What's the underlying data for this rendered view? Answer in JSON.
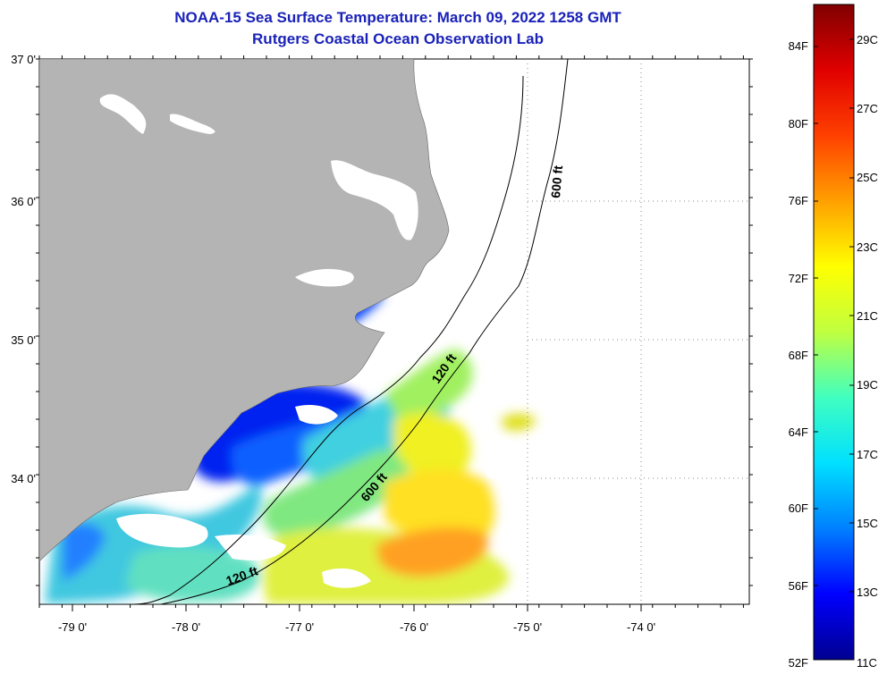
{
  "title": {
    "line1": "NOAA-15 Sea Surface Temperature:  March 09, 2022 1258 GMT",
    "line2": "Rutgers Coastal Ocean Observation Lab"
  },
  "map": {
    "lat_labels": [
      "37 0'",
      "36 0'",
      "35 0'",
      "34 0'"
    ],
    "lon_labels": [
      "-79 0'",
      "-78 0'",
      "-77 0'",
      "-76 0'",
      "-75 0'",
      "-74 0'"
    ],
    "contours": [
      {
        "label": "600 ft"
      },
      {
        "label": "120 ft"
      },
      {
        "label": "600 ft"
      },
      {
        "label": "120 ft"
      }
    ],
    "colors": {
      "land": "#b4b4b4",
      "contour": "#000000",
      "grid": "#888888"
    }
  },
  "colorbar": {
    "fahrenheit_labels": [
      "84F",
      "80F",
      "76F",
      "72F",
      "68F",
      "64F",
      "60F",
      "56F",
      "52F"
    ],
    "celsius_labels": [
      "29C",
      "27C",
      "25C",
      "23C",
      "21C",
      "19C",
      "17C",
      "15C",
      "13C",
      "11C"
    ],
    "gradient": [
      "#000090",
      "#0000ff",
      "#0080ff",
      "#00e0ff",
      "#40ffc0",
      "#c0ff40",
      "#ffff00",
      "#ffa000",
      "#ff4000",
      "#e00000",
      "#800000"
    ]
  }
}
